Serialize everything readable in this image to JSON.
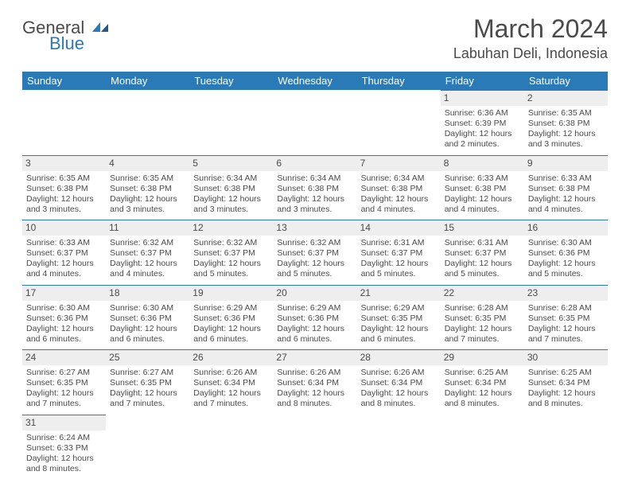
{
  "brand": {
    "part1": "General",
    "part2": "Blue"
  },
  "title": "March 2024",
  "location": "Labuhan Deli, Indonesia",
  "colors": {
    "primary": "#2b7ab8",
    "header_text": "#ffffff",
    "body_text": "#4a4a4a",
    "daynum_bg": "#eeeeee"
  },
  "weekdays": [
    "Sunday",
    "Monday",
    "Tuesday",
    "Wednesday",
    "Thursday",
    "Friday",
    "Saturday"
  ],
  "weeks": [
    [
      null,
      null,
      null,
      null,
      null,
      {
        "n": "1",
        "sr": "Sunrise: 6:36 AM",
        "ss": "Sunset: 6:39 PM",
        "dl": "Daylight: 12 hours and 2 minutes."
      },
      {
        "n": "2",
        "sr": "Sunrise: 6:35 AM",
        "ss": "Sunset: 6:38 PM",
        "dl": "Daylight: 12 hours and 3 minutes."
      }
    ],
    [
      {
        "n": "3",
        "sr": "Sunrise: 6:35 AM",
        "ss": "Sunset: 6:38 PM",
        "dl": "Daylight: 12 hours and 3 minutes."
      },
      {
        "n": "4",
        "sr": "Sunrise: 6:35 AM",
        "ss": "Sunset: 6:38 PM",
        "dl": "Daylight: 12 hours and 3 minutes."
      },
      {
        "n": "5",
        "sr": "Sunrise: 6:34 AM",
        "ss": "Sunset: 6:38 PM",
        "dl": "Daylight: 12 hours and 3 minutes."
      },
      {
        "n": "6",
        "sr": "Sunrise: 6:34 AM",
        "ss": "Sunset: 6:38 PM",
        "dl": "Daylight: 12 hours and 3 minutes."
      },
      {
        "n": "7",
        "sr": "Sunrise: 6:34 AM",
        "ss": "Sunset: 6:38 PM",
        "dl": "Daylight: 12 hours and 4 minutes."
      },
      {
        "n": "8",
        "sr": "Sunrise: 6:33 AM",
        "ss": "Sunset: 6:38 PM",
        "dl": "Daylight: 12 hours and 4 minutes."
      },
      {
        "n": "9",
        "sr": "Sunrise: 6:33 AM",
        "ss": "Sunset: 6:38 PM",
        "dl": "Daylight: 12 hours and 4 minutes."
      }
    ],
    [
      {
        "n": "10",
        "sr": "Sunrise: 6:33 AM",
        "ss": "Sunset: 6:37 PM",
        "dl": "Daylight: 12 hours and 4 minutes."
      },
      {
        "n": "11",
        "sr": "Sunrise: 6:32 AM",
        "ss": "Sunset: 6:37 PM",
        "dl": "Daylight: 12 hours and 4 minutes."
      },
      {
        "n": "12",
        "sr": "Sunrise: 6:32 AM",
        "ss": "Sunset: 6:37 PM",
        "dl": "Daylight: 12 hours and 5 minutes."
      },
      {
        "n": "13",
        "sr": "Sunrise: 6:32 AM",
        "ss": "Sunset: 6:37 PM",
        "dl": "Daylight: 12 hours and 5 minutes."
      },
      {
        "n": "14",
        "sr": "Sunrise: 6:31 AM",
        "ss": "Sunset: 6:37 PM",
        "dl": "Daylight: 12 hours and 5 minutes."
      },
      {
        "n": "15",
        "sr": "Sunrise: 6:31 AM",
        "ss": "Sunset: 6:37 PM",
        "dl": "Daylight: 12 hours and 5 minutes."
      },
      {
        "n": "16",
        "sr": "Sunrise: 6:30 AM",
        "ss": "Sunset: 6:36 PM",
        "dl": "Daylight: 12 hours and 5 minutes."
      }
    ],
    [
      {
        "n": "17",
        "sr": "Sunrise: 6:30 AM",
        "ss": "Sunset: 6:36 PM",
        "dl": "Daylight: 12 hours and 6 minutes."
      },
      {
        "n": "18",
        "sr": "Sunrise: 6:30 AM",
        "ss": "Sunset: 6:36 PM",
        "dl": "Daylight: 12 hours and 6 minutes."
      },
      {
        "n": "19",
        "sr": "Sunrise: 6:29 AM",
        "ss": "Sunset: 6:36 PM",
        "dl": "Daylight: 12 hours and 6 minutes."
      },
      {
        "n": "20",
        "sr": "Sunrise: 6:29 AM",
        "ss": "Sunset: 6:36 PM",
        "dl": "Daylight: 12 hours and 6 minutes."
      },
      {
        "n": "21",
        "sr": "Sunrise: 6:29 AM",
        "ss": "Sunset: 6:35 PM",
        "dl": "Daylight: 12 hours and 6 minutes."
      },
      {
        "n": "22",
        "sr": "Sunrise: 6:28 AM",
        "ss": "Sunset: 6:35 PM",
        "dl": "Daylight: 12 hours and 7 minutes."
      },
      {
        "n": "23",
        "sr": "Sunrise: 6:28 AM",
        "ss": "Sunset: 6:35 PM",
        "dl": "Daylight: 12 hours and 7 minutes."
      }
    ],
    [
      {
        "n": "24",
        "sr": "Sunrise: 6:27 AM",
        "ss": "Sunset: 6:35 PM",
        "dl": "Daylight: 12 hours and 7 minutes."
      },
      {
        "n": "25",
        "sr": "Sunrise: 6:27 AM",
        "ss": "Sunset: 6:35 PM",
        "dl": "Daylight: 12 hours and 7 minutes."
      },
      {
        "n": "26",
        "sr": "Sunrise: 6:26 AM",
        "ss": "Sunset: 6:34 PM",
        "dl": "Daylight: 12 hours and 7 minutes."
      },
      {
        "n": "27",
        "sr": "Sunrise: 6:26 AM",
        "ss": "Sunset: 6:34 PM",
        "dl": "Daylight: 12 hours and 8 minutes."
      },
      {
        "n": "28",
        "sr": "Sunrise: 6:26 AM",
        "ss": "Sunset: 6:34 PM",
        "dl": "Daylight: 12 hours and 8 minutes."
      },
      {
        "n": "29",
        "sr": "Sunrise: 6:25 AM",
        "ss": "Sunset: 6:34 PM",
        "dl": "Daylight: 12 hours and 8 minutes."
      },
      {
        "n": "30",
        "sr": "Sunrise: 6:25 AM",
        "ss": "Sunset: 6:34 PM",
        "dl": "Daylight: 12 hours and 8 minutes."
      }
    ],
    [
      {
        "n": "31",
        "sr": "Sunrise: 6:24 AM",
        "ss": "Sunset: 6:33 PM",
        "dl": "Daylight: 12 hours and 8 minutes."
      },
      null,
      null,
      null,
      null,
      null,
      null
    ]
  ]
}
